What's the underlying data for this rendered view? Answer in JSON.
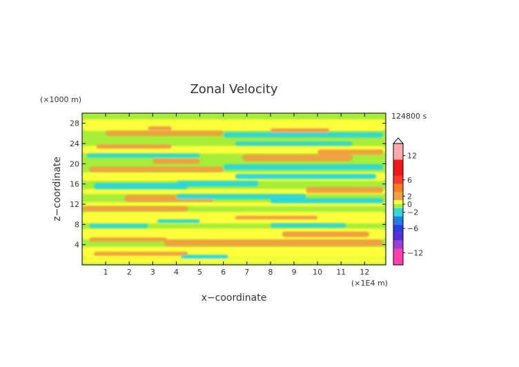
{
  "chart_data": {
    "type": "heatmap",
    "title": "Zonal Velocity",
    "time_label": "124800 s",
    "xlabel": "x−coordinate",
    "ylabel": "z−coordinate",
    "x_unit": "(×1E4 m)",
    "y_unit": "(×1000 m)",
    "xlim": [
      0,
      12.9
    ],
    "ylim": [
      0,
      30
    ],
    "x_ticks": [
      1,
      2,
      3,
      4,
      5,
      6,
      7,
      8,
      9,
      10,
      11,
      12
    ],
    "y_ticks": [
      4,
      8,
      12,
      16,
      20,
      24,
      28
    ],
    "colorbar": {
      "tick_values": [
        12,
        6,
        2,
        0,
        -2,
        -6,
        -12
      ],
      "tick_labels": [
        "12",
        "6",
        "2",
        "0",
        "−2",
        "−6",
        "−12"
      ],
      "levels": [
        {
          "from": -15,
          "to": -11,
          "color": "#ff3fb0"
        },
        {
          "from": -11,
          "to": -9,
          "color": "#9b3fd6"
        },
        {
          "from": -9,
          "to": -7,
          "color": "#5a2fd8"
        },
        {
          "from": -7,
          "to": -5,
          "color": "#2d3fe0"
        },
        {
          "from": -5,
          "to": -3,
          "color": "#1f7fe8"
        },
        {
          "from": -3,
          "to": -1,
          "color": "#2fd8d8"
        },
        {
          "from": -1,
          "to": 0,
          "color": "#a6ee3a"
        },
        {
          "from": 0,
          "to": 1,
          "color": "#ffff3a"
        },
        {
          "from": 1,
          "to": 3,
          "color": "#f0a040"
        },
        {
          "from": 3,
          "to": 5,
          "color": "#ff7a22"
        },
        {
          "from": 5,
          "to": 7,
          "color": "#ff3a2a"
        },
        {
          "from": 7,
          "to": 11,
          "color": "#f01818"
        },
        {
          "from": 11,
          "to": 15,
          "color": "#ffaaaa"
        }
      ]
    },
    "bands": [
      {
        "x": [
          0,
          12.9
        ],
        "z": [
          0.3,
          1.3
        ],
        "value": 0.3
      },
      {
        "x": [
          0.5,
          4.5
        ],
        "z": [
          1.8,
          2.6
        ],
        "value": 2
      },
      {
        "x": [
          4.2,
          6.2
        ],
        "z": [
          1.2,
          2.0
        ],
        "value": -2
      },
      {
        "x": [
          3.5,
          12.8
        ],
        "z": [
          3.7,
          5.0
        ],
        "value": 2
      },
      {
        "x": [
          8.5,
          12.2
        ],
        "z": [
          5.5,
          6.6
        ],
        "value": 2
      },
      {
        "x": [
          0.3,
          3.6
        ],
        "z": [
          4.6,
          5.4
        ],
        "value": 2
      },
      {
        "x": [
          0.3,
          2.8
        ],
        "z": [
          7.3,
          8.1
        ],
        "value": -2
      },
      {
        "x": [
          3.2,
          5.0
        ],
        "z": [
          8.3,
          9.0
        ],
        "value": -2
      },
      {
        "x": [
          8.0,
          11.2
        ],
        "z": [
          7.4,
          8.2
        ],
        "value": -2
      },
      {
        "x": [
          6.5,
          10.0
        ],
        "z": [
          9.0,
          9.7
        ],
        "value": 2
      },
      {
        "x": [
          0.0,
          4.5
        ],
        "z": [
          10.6,
          11.6
        ],
        "value": 2
      },
      {
        "x": [
          1.8,
          5.6
        ],
        "z": [
          12.5,
          13.8
        ],
        "value": 2
      },
      {
        "x": [
          4.0,
          9.5
        ],
        "z": [
          13.0,
          14.0
        ],
        "value": -2
      },
      {
        "x": [
          8.0,
          12.8
        ],
        "z": [
          12.2,
          13.2
        ],
        "value": -2
      },
      {
        "x": [
          9.5,
          12.8
        ],
        "z": [
          14.2,
          15.4
        ],
        "value": 2
      },
      {
        "x": [
          0.5,
          4.5
        ],
        "z": [
          15.0,
          16.2
        ],
        "value": -2
      },
      {
        "x": [
          4.0,
          7.5
        ],
        "z": [
          15.5,
          16.6
        ],
        "value": -2
      },
      {
        "x": [
          6.5,
          12.5
        ],
        "z": [
          17.0,
          18.0
        ],
        "value": -2
      },
      {
        "x": [
          0.3,
          6.0
        ],
        "z": [
          18.4,
          19.4
        ],
        "value": 2
      },
      {
        "x": [
          6.0,
          12.8
        ],
        "z": [
          18.8,
          19.9
        ],
        "value": -2
      },
      {
        "x": [
          3.0,
          5.0
        ],
        "z": [
          20.0,
          21.0
        ],
        "value": 2
      },
      {
        "x": [
          0.2,
          5.0
        ],
        "z": [
          21.2,
          22.0
        ],
        "value": -2
      },
      {
        "x": [
          6.8,
          11.5
        ],
        "z": [
          20.5,
          21.8
        ],
        "value": 2
      },
      {
        "x": [
          10.0,
          12.8
        ],
        "z": [
          21.8,
          22.8
        ],
        "value": 2
      },
      {
        "x": [
          0.6,
          3.8
        ],
        "z": [
          23.0,
          23.8
        ],
        "value": 2
      },
      {
        "x": [
          6.5,
          11.5
        ],
        "z": [
          23.6,
          24.4
        ],
        "value": -2
      },
      {
        "x": [
          1.0,
          6.0
        ],
        "z": [
          25.5,
          26.5
        ],
        "value": 2
      },
      {
        "x": [
          6.0,
          12.8
        ],
        "z": [
          25.2,
          26.2
        ],
        "value": -2
      },
      {
        "x": [
          2.8,
          3.8
        ],
        "z": [
          26.6,
          27.4
        ],
        "value": 2
      },
      {
        "x": [
          8.0,
          10.5
        ],
        "z": [
          26.2,
          27.0
        ],
        "value": 2
      },
      {
        "x": [
          0.0,
          12.9
        ],
        "z": [
          29.0,
          30.0
        ],
        "value": -0.5
      }
    ]
  }
}
